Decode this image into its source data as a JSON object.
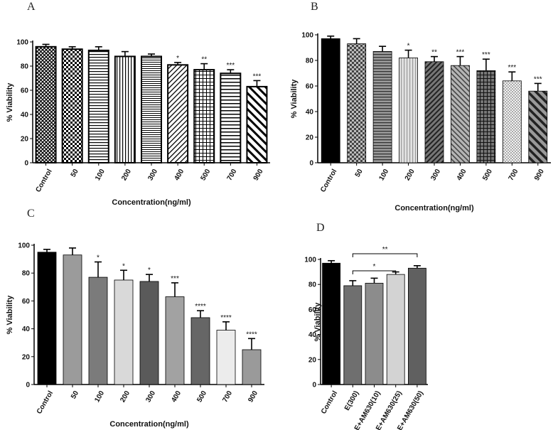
{
  "chart_data": [
    {
      "type": "bar",
      "panel": "A",
      "categories": [
        "Control",
        "50",
        "100",
        "200",
        "300",
        "400",
        "500",
        "700",
        "900"
      ],
      "values": [
        96,
        94,
        93,
        88,
        88,
        81,
        77,
        74,
        63
      ],
      "errors": [
        2,
        2,
        3,
        4,
        2,
        2,
        5,
        3,
        5
      ],
      "significance": [
        "",
        "",
        "",
        "",
        "",
        "*",
        "**",
        "***",
        "***"
      ],
      "fills": [
        "crosshatch",
        "checker",
        "hlines",
        "vlines",
        "hlines2",
        "diag",
        "grid",
        "hlines3",
        "diagbold"
      ],
      "ylabel": "% Viability",
      "xlabel": "Concentration(ng/ml)",
      "ylim": [
        0,
        100
      ],
      "yticks": [
        0,
        20,
        40,
        60,
        80,
        100
      ]
    },
    {
      "type": "bar",
      "panel": "B",
      "categories": [
        "Control",
        "50",
        "100",
        "200",
        "300",
        "400",
        "500",
        "700",
        "900"
      ],
      "values": [
        97,
        93,
        87,
        82,
        79,
        76,
        72,
        64,
        56
      ],
      "errors": [
        2,
        4,
        4,
        6,
        4,
        7,
        9,
        7,
        6
      ],
      "significance": [
        "",
        "",
        "",
        "*",
        "**",
        "***",
        "***",
        "***",
        "***"
      ],
      "fills": [
        "solid",
        "checker",
        "hlines",
        "vlines",
        "diag",
        "diag",
        "grid",
        "checker",
        "diagbold"
      ],
      "ylabel": "% Viability",
      "xlabel": "Concentration(ng/ml)",
      "ylim": [
        0,
        100
      ],
      "yticks": [
        0,
        20,
        40,
        60,
        80,
        100
      ]
    },
    {
      "type": "bar",
      "panel": "C",
      "categories": [
        "Control",
        "50",
        "100",
        "200",
        "300",
        "400",
        "500",
        "700",
        "900"
      ],
      "values": [
        95,
        93,
        77,
        75,
        74,
        63,
        48,
        39,
        25
      ],
      "errors": [
        2,
        5,
        11,
        7,
        5,
        10,
        5,
        6,
        8
      ],
      "significance": [
        "",
        "",
        "*",
        "*",
        "*",
        "***",
        "****",
        "****",
        "****"
      ],
      "fills": [
        "solid",
        "solid",
        "solid",
        "solid",
        "solid",
        "solid",
        "solid",
        "solid",
        "solid"
      ],
      "ylabel": "% Viability",
      "xlabel": "Concentration(ng/ml)",
      "ylim": [
        0,
        100
      ],
      "yticks": [
        0,
        20,
        40,
        60,
        80,
        100
      ]
    },
    {
      "type": "bar",
      "panel": "D",
      "categories": [
        "Control",
        "E(300)",
        "E+AM630(10)",
        "E+AM630(25)",
        "E+AM630(50)"
      ],
      "values": [
        97,
        79,
        81,
        88,
        93
      ],
      "errors": [
        2,
        4,
        4,
        2,
        2
      ],
      "significance": [
        "",
        "",
        "",
        "",
        ""
      ],
      "brackets": [
        {
          "from": 1,
          "to": 3,
          "label": "*"
        },
        {
          "from": 1,
          "to": 4,
          "label": "**"
        }
      ],
      "fills": [
        "solid",
        "solid",
        "solid",
        "solid",
        "solid"
      ],
      "ylabel": "% Viability",
      "xlabel": "",
      "ylim": [
        0,
        100
      ],
      "yticks": [
        0,
        20,
        40,
        60,
        80,
        100
      ]
    }
  ],
  "colors": {
    "black": "#000000",
    "B": [
      "#000000",
      "#7a7a7a",
      "#8a8a8a",
      "#c8c8c8",
      "#555555",
      "#8e8e8e",
      "#6a6a6a",
      "#d8d8d8",
      "#555555"
    ],
    "C": [
      "#000000",
      "#9b9b9b",
      "#7b7b7b",
      "#d9d9d9",
      "#5a5a5a",
      "#a2a2a2",
      "#666666",
      "#ececec",
      "#9a9a9a"
    ],
    "D": [
      "#000000",
      "#6f6f6f",
      "#8c8c8c",
      "#d3d3d3",
      "#606060"
    ]
  }
}
